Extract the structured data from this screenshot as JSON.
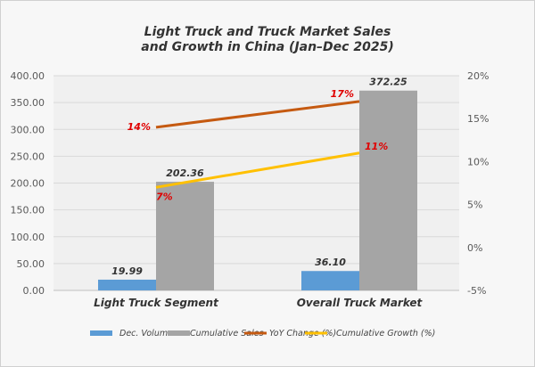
{
  "chart_data": {
    "type": "bar",
    "title_lines": [
      "Light Truck and Truck Market Sales",
      "and Growth in China (Jan–Dec 2025)"
    ],
    "categories": [
      "Light Truck Segment",
      "Overall Truck Market"
    ],
    "series": [
      {
        "name": "Dec. Volume",
        "type": "bar",
        "axis": "left",
        "color": "#5b9bd5",
        "values": [
          19.99,
          36.1
        ],
        "labels": [
          "19.99",
          "36.10"
        ]
      },
      {
        "name": "Cumulative Sales",
        "type": "bar",
        "axis": "left",
        "color": "#a5a5a5",
        "values": [
          202.36,
          372.25
        ],
        "labels": [
          "202.36",
          "372.25"
        ]
      },
      {
        "name": "YoY Change (%)",
        "type": "line",
        "axis": "right",
        "color": "#c55a11",
        "values": [
          14,
          17
        ],
        "labels": [
          "14%",
          "17%"
        ]
      },
      {
        "name": "Cumulative Growth (%)",
        "type": "line",
        "axis": "right",
        "color": "#ffc000",
        "values": [
          7,
          11
        ],
        "labels": [
          "7%",
          "11%"
        ]
      }
    ],
    "left_axis": {
      "ylim": [
        0,
        400
      ],
      "ticks": [
        "0.00",
        "50.00",
        "100.00",
        "150.00",
        "200.00",
        "250.00",
        "300.00",
        "350.00",
        "400.00"
      ]
    },
    "right_axis": {
      "ylim": [
        -5,
        20
      ],
      "ticks": [
        "-5%",
        "0%",
        "5%",
        "10%",
        "15%",
        "20%"
      ]
    },
    "grid": true,
    "legend": "bottom"
  }
}
